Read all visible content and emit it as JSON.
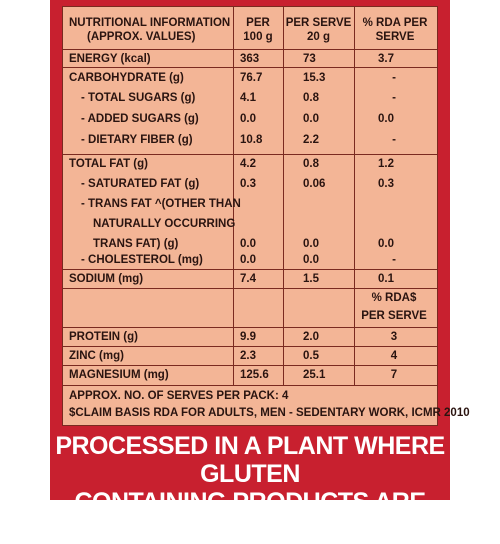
{
  "header": {
    "col1_line1": "NUTRITIONAL INFORMATION",
    "col1_line2": "(APPROX. VALUES)",
    "col2_line1": "PER",
    "col2_line2": "100 g",
    "col3_line1": "PER SERVE",
    "col3_line2": "20 g",
    "col4_line1": "% RDA PER",
    "col4_line2": "SERVE"
  },
  "rows": {
    "energy": {
      "label": "ENERGY (kcal)",
      "per100": "363",
      "serve": "73",
      "rda": "3.7"
    },
    "carb": {
      "label": "CARBOHYDRATE (g)",
      "per100": "76.7",
      "serve": "15.3",
      "rda": "-"
    },
    "sugars": {
      "label": "- TOTAL SUGARS (g)",
      "per100": "4.1",
      "serve": "0.8",
      "rda": "-"
    },
    "added": {
      "label": "- ADDED SUGARS (g)",
      "per100": "0.0",
      "serve": "0.0",
      "rda": "0.0"
    },
    "fiber": {
      "label": "- DIETARY FIBER (g)",
      "per100": "10.8",
      "serve": "2.2",
      "rda": "-"
    },
    "fat": {
      "label": "TOTAL FAT (g)",
      "per100": "4.2",
      "serve": "0.8",
      "rda": "1.2"
    },
    "satfat": {
      "label": "- SATURATED FAT (g)",
      "per100": "0.3",
      "serve": "0.06",
      "rda": "0.3"
    },
    "trans_l1": "- TRANS FAT ^(OTHER THAN",
    "trans_l2": "NATURALLY OCCURRING",
    "trans": {
      "label": "TRANS FAT) (g)",
      "per100": "0.0",
      "serve": "0.0",
      "rda": "0.0"
    },
    "chol": {
      "label": "- CHOLESTEROL (mg)",
      "per100": "0.0",
      "serve": "0.0",
      "rda": "-"
    },
    "sodium": {
      "label": "SODIUM (mg)",
      "per100": "7.4",
      "serve": "1.5",
      "rda": "0.1"
    },
    "rda2_line1": "% RDA$",
    "rda2_line2": "PER SERVE",
    "protein": {
      "label": "PROTEIN (g)",
      "per100": "9.9",
      "serve": "2.0",
      "rda": "3"
    },
    "zinc": {
      "label": "ZINC (mg)",
      "per100": "2.3",
      "serve": "0.5",
      "rda": "4"
    },
    "magnesium": {
      "label": "MAGNESIUM (mg)",
      "per100": "125.6",
      "serve": "25.1",
      "rda": "7"
    }
  },
  "footnotes": {
    "serves": "APPROX. NO. OF SERVES PER PACK: 4",
    "claim": "$CLAIM BASIS RDA FOR ADULTS, MEN - SEDENTARY WORK, ICMR 2010"
  },
  "bottom": {
    "line1": "PROCESSED IN A PLANT WHERE GLUTEN",
    "line2": "CONTAINING PRODUCTS ARE MANUFACTURED"
  },
  "colors": {
    "frame": "#c8202f",
    "panel": "#f3b596",
    "line": "#7a2a20",
    "text": "#2a1410"
  }
}
